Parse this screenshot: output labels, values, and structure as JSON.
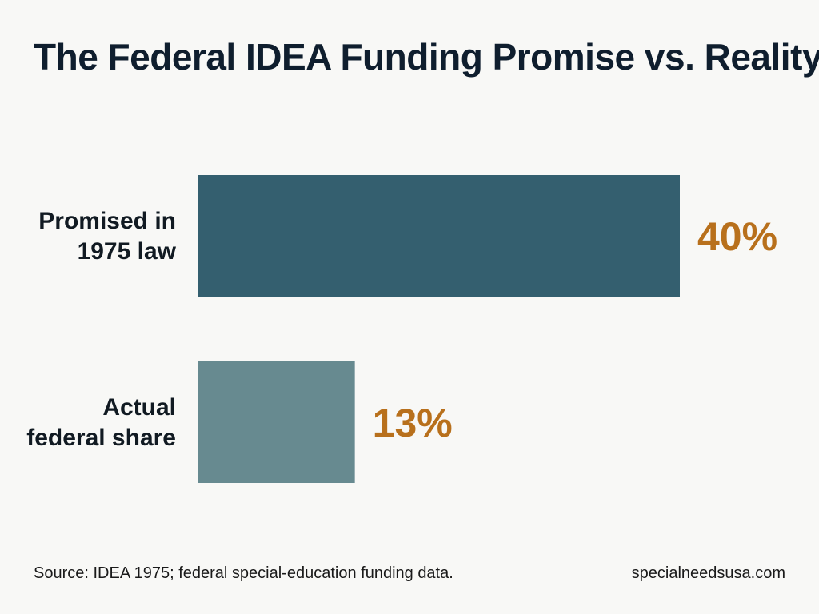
{
  "title": "The Federal IDEA Funding Promise vs. Reality",
  "chart_data": {
    "type": "bar",
    "orientation": "horizontal",
    "categories": [
      [
        "Promised in",
        "1975 law"
      ],
      [
        "Actual",
        "federal share"
      ]
    ],
    "values": [
      40,
      13
    ],
    "value_labels": [
      "40%",
      "13%"
    ],
    "unit": "%",
    "xlim": [
      0,
      40
    ],
    "bar_colors": [
      "#345f6f",
      "#678a90"
    ],
    "value_label_color": "#b8701c",
    "grid": false,
    "legend": "none"
  },
  "footer": {
    "source": "Source: IDEA 1975; federal special-education funding data.",
    "site": "specialneedsusa.com"
  }
}
